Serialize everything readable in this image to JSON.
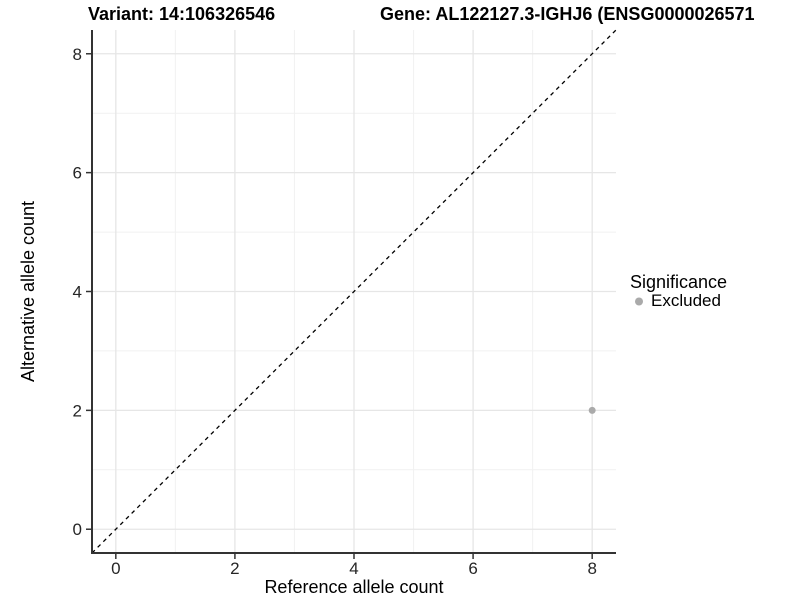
{
  "header": {
    "variant_title": "Variant: 14:106326546",
    "gene_title": "Gene: AL122127.3-IGHJ6 (ENSG0000026571"
  },
  "chart_data": {
    "type": "scatter",
    "xlabel": "Reference allele count",
    "ylabel": "Alternative allele count",
    "xlim": [
      -0.4,
      8.4
    ],
    "ylim": [
      -0.4,
      8.4
    ],
    "xticks": [
      0,
      2,
      4,
      6,
      8
    ],
    "yticks": [
      0,
      2,
      4,
      6,
      8
    ],
    "minor_xticks": [
      1,
      3,
      5,
      7
    ],
    "minor_yticks": [
      1,
      3,
      5,
      7
    ],
    "grid": "major+minor",
    "reference_line": {
      "type": "identity",
      "style": "dashed",
      "from": [
        -0.4,
        -0.4
      ],
      "to": [
        8.4,
        8.4
      ]
    },
    "series": [
      {
        "name": "Excluded",
        "color": "#aaaaaa",
        "points": [
          {
            "x": 8,
            "y": 2
          }
        ]
      }
    ],
    "legend": {
      "title": "Significance",
      "position": "right",
      "entries": [
        {
          "label": "Excluded",
          "color": "#aaaaaa"
        }
      ]
    }
  },
  "colors": {
    "background": "#ffffff",
    "grid_major": "#e6e6e6",
    "grid_minor": "#f1f1f1",
    "axis": "#333333",
    "tick_text": "#262626",
    "title_text": "#000000",
    "dashed_line": "#000000",
    "point": "#aaaaaa"
  }
}
